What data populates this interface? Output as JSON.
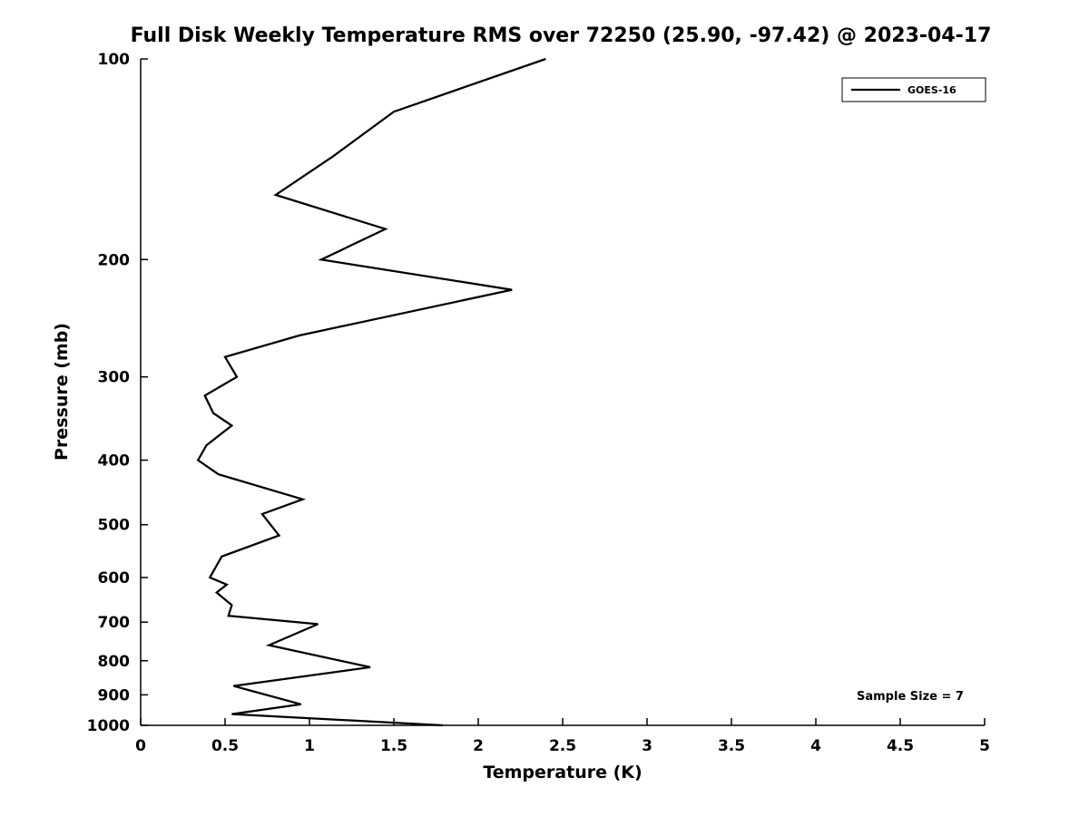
{
  "chart_data": {
    "type": "line",
    "title": "Full Disk Weekly Temperature RMS over 72250 (25.90, -97.42) @ 2023-04-17",
    "xlabel": "Temperature (K)",
    "ylabel": "Pressure (mb)",
    "xlim": [
      0,
      5
    ],
    "ylim": [
      100,
      1000
    ],
    "yscale": "log",
    "y_inverted_downward": true,
    "grid": false,
    "xticks": [
      {
        "value": 0,
        "label": "0"
      },
      {
        "value": 0.5,
        "label": "0.5"
      },
      {
        "value": 1,
        "label": "1"
      },
      {
        "value": 1.5,
        "label": "1.5"
      },
      {
        "value": 2,
        "label": "2"
      },
      {
        "value": 2.5,
        "label": "2.5"
      },
      {
        "value": 3,
        "label": "3"
      },
      {
        "value": 3.5,
        "label": "3.5"
      },
      {
        "value": 4,
        "label": "4"
      },
      {
        "value": 4.5,
        "label": "4.5"
      },
      {
        "value": 5,
        "label": "5"
      }
    ],
    "yticks": [
      {
        "value": 100,
        "label": "100"
      },
      {
        "value": 200,
        "label": "200"
      },
      {
        "value": 300,
        "label": "300"
      },
      {
        "value": 400,
        "label": "400"
      },
      {
        "value": 500,
        "label": "500"
      },
      {
        "value": 600,
        "label": "600"
      },
      {
        "value": 700,
        "label": "700"
      },
      {
        "value": 800,
        "label": "800"
      },
      {
        "value": 900,
        "label": "900"
      },
      {
        "value": 1000,
        "label": "1000"
      }
    ],
    "legend_label": "GOES-16",
    "legend_position": "top-right",
    "annotation": "Sample Size = 7",
    "series": [
      {
        "name": "GOES-16",
        "color": "#000000",
        "pressure_mb": [
          100,
          120,
          140,
          160,
          180,
          200,
          222,
          260,
          280,
          300,
          320,
          340,
          355,
          380,
          400,
          420,
          458,
          482,
          519,
          558,
          600,
          615,
          632,
          660,
          685,
          705,
          758,
          818,
          873,
          930,
          962,
          1000
        ],
        "rms_k": [
          2.4,
          1.5,
          1.14,
          0.8,
          1.45,
          1.07,
          2.2,
          0.94,
          0.5,
          0.57,
          0.38,
          0.43,
          0.54,
          0.39,
          0.34,
          0.46,
          0.96,
          0.72,
          0.82,
          0.48,
          0.41,
          0.51,
          0.45,
          0.54,
          0.52,
          1.05,
          0.76,
          1.36,
          0.55,
          0.95,
          0.54,
          1.79
        ]
      }
    ]
  }
}
